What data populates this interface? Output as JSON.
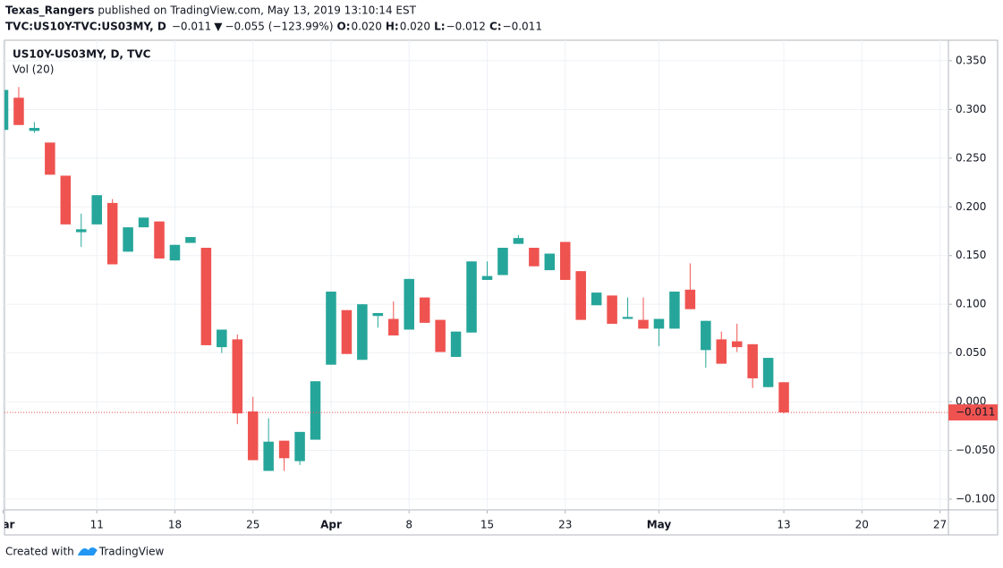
{
  "header": {
    "author": "Texas_Rangers",
    "published": "published on TradingView.com, May 13, 2019 13:10:14 EST",
    "symbol": "TVC:US10Y-TVC:US03MY, D",
    "last": "−0.011",
    "arrow": "▼",
    "change": "−0.055 (−123.99%)",
    "o_label": "O:",
    "o": "0.020",
    "h_label": "H:",
    "h": "0.020",
    "l_label": "L:",
    "l": "−0.012",
    "c_label": "C:",
    "c": "−0.011"
  },
  "chart_data": {
    "type": "candlestick",
    "legend": [
      "US10Y-US03MY, D, TVC",
      "Vol (20)"
    ],
    "up_color": "#26a69a",
    "down_color": "#ef5350",
    "grid": true,
    "open": [
      0.279,
      0.312,
      0.278,
      0.266,
      0.232,
      0.174,
      0.182,
      0.204,
      0.154,
      0.179,
      0.185,
      0.145,
      0.163,
      0.158,
      0.056,
      0.064,
      -0.01,
      -0.071,
      -0.04,
      -0.061,
      -0.039,
      0.038,
      0.094,
      0.043,
      0.088,
      0.085,
      0.074,
      0.107,
      0.084,
      0.046,
      0.071,
      0.125,
      0.13,
      0.162,
      0.158,
      0.135,
      0.164,
      0.134,
      0.099,
      0.109,
      0.085,
      0.084,
      0.075,
      0.075,
      0.115,
      0.053,
      0.064,
      0.062,
      0.059,
      0.015,
      0.02
    ],
    "high": [
      0.32,
      0.323,
      0.287,
      0.266,
      0.232,
      0.193,
      0.212,
      0.208,
      0.179,
      0.189,
      0.185,
      0.161,
      0.169,
      0.158,
      0.074,
      0.069,
      0.005,
      -0.017,
      -0.04,
      -0.031,
      0.021,
      0.113,
      0.094,
      0.1,
      0.091,
      0.103,
      0.126,
      0.107,
      0.084,
      0.072,
      0.144,
      0.144,
      0.158,
      0.171,
      0.158,
      0.152,
      0.164,
      0.134,
      0.112,
      0.109,
      0.107,
      0.107,
      0.085,
      0.113,
      0.142,
      0.083,
      0.072,
      0.08,
      0.059,
      0.045,
      0.02
    ],
    "low": [
      0.279,
      0.284,
      0.276,
      0.233,
      0.182,
      0.159,
      0.182,
      0.141,
      0.154,
      0.179,
      0.147,
      0.145,
      0.163,
      0.058,
      0.05,
      -0.023,
      -0.06,
      -0.071,
      -0.071,
      -0.065,
      -0.039,
      0.038,
      0.049,
      0.043,
      0.076,
      0.068,
      0.074,
      0.081,
      0.051,
      0.046,
      0.071,
      0.125,
      0.13,
      0.162,
      0.139,
      0.135,
      0.125,
      0.084,
      0.099,
      0.08,
      0.085,
      0.075,
      0.057,
      0.075,
      0.095,
      0.035,
      0.039,
      0.051,
      0.014,
      0.015,
      -0.012
    ],
    "close": [
      0.32,
      0.284,
      0.281,
      0.233,
      0.182,
      0.177,
      0.212,
      0.141,
      0.179,
      0.189,
      0.147,
      0.161,
      0.169,
      0.058,
      0.074,
      -0.012,
      -0.06,
      -0.041,
      -0.058,
      -0.031,
      0.021,
      0.113,
      0.049,
      0.1,
      0.091,
      0.068,
      0.126,
      0.081,
      0.051,
      0.072,
      0.144,
      0.129,
      0.158,
      0.168,
      0.139,
      0.152,
      0.125,
      0.084,
      0.112,
      0.08,
      0.087,
      0.075,
      0.085,
      0.113,
      0.095,
      0.083,
      0.039,
      0.056,
      0.024,
      0.045,
      -0.011
    ],
    "xlim": [
      0.086,
      60.54
    ],
    "xticks": [
      {
        "value": 0,
        "label": "Mar"
      },
      {
        "value": 6,
        "label": "11"
      },
      {
        "value": 11,
        "label": "18"
      },
      {
        "value": 16,
        "label": "25"
      },
      {
        "value": 21,
        "label": "Apr"
      },
      {
        "value": 26,
        "label": "8"
      },
      {
        "value": 31,
        "label": "15"
      },
      {
        "value": 36,
        "label": "23"
      },
      {
        "value": 42,
        "label": "May"
      },
      {
        "value": 50,
        "label": "13"
      },
      {
        "value": 55,
        "label": "20"
      },
      {
        "value": 60,
        "label": "27"
      }
    ],
    "ylim": [
      -0.111,
      0.371
    ],
    "yticks": [
      {
        "value": 0.35,
        "label": "0.350"
      },
      {
        "value": 0.3,
        "label": "0.300"
      },
      {
        "value": 0.25,
        "label": "0.250"
      },
      {
        "value": 0.2,
        "label": "0.200"
      },
      {
        "value": 0.15,
        "label": "0.150"
      },
      {
        "value": 0.1,
        "label": "0.100"
      },
      {
        "value": 0.05,
        "label": "0.050"
      },
      {
        "value": 0,
        "label": "0.000"
      },
      {
        "value": -0.05,
        "label": "−0.050"
      },
      {
        "value": -0.1,
        "label": "−0.100"
      }
    ],
    "last_price": {
      "value": -0.011,
      "label": "−0.011"
    }
  },
  "footer": {
    "created": "Created with",
    "brand": "TradingView"
  }
}
